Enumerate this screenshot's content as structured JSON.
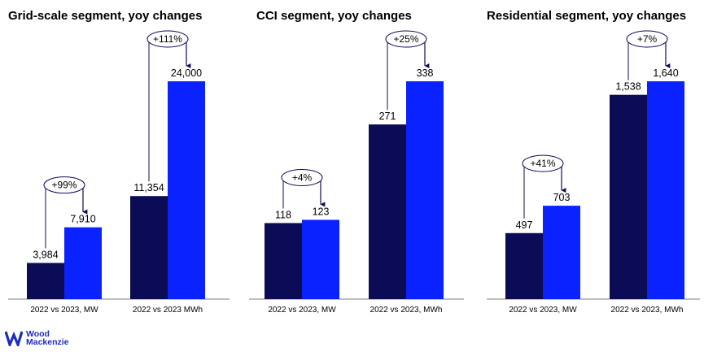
{
  "colors": {
    "year_2022": "#0c0c56",
    "year_2023": "#0a22ff",
    "axis": "#7f7f7f",
    "brand": "#1b2dbb"
  },
  "chart_data": [
    {
      "type": "bar",
      "title": "Grid-scale segment, yoy changes",
      "groups": [
        {
          "category": "2022 vs 2023, MW",
          "values": [
            3984,
            7910
          ],
          "labels": [
            "3,984",
            "7,910"
          ],
          "change": "+99%"
        },
        {
          "category": "2022 vs 2023 MWh",
          "values": [
            11354,
            24000
          ],
          "labels": [
            "11,354",
            "24,000"
          ],
          "change": "+111%"
        }
      ],
      "ymax": 24000
    },
    {
      "type": "bar",
      "title": "CCI segment, yoy changes",
      "groups": [
        {
          "category": "2022 vs 2023, MW",
          "values": [
            118,
            123
          ],
          "labels": [
            "118",
            "123"
          ],
          "change": "+4%"
        },
        {
          "category": "2022 vs 2023, MWh",
          "values": [
            271,
            338
          ],
          "labels": [
            "271",
            "338"
          ],
          "change": "+25%"
        }
      ],
      "ymax": 338
    },
    {
      "type": "bar",
      "title": "Residential segment, yoy changes",
      "groups": [
        {
          "category": "2022 vs 2023, MW",
          "values": [
            497,
            703
          ],
          "labels": [
            "497",
            "703"
          ],
          "change": "+41%"
        },
        {
          "category": "2022 vs 2023, MWh",
          "values": [
            1538,
            1640
          ],
          "labels": [
            "1,538",
            "1,640"
          ],
          "change": "+7%"
        }
      ],
      "ymax": 1640
    }
  ],
  "brand": {
    "line1": "Wood",
    "line2": "Mackenzie"
  }
}
